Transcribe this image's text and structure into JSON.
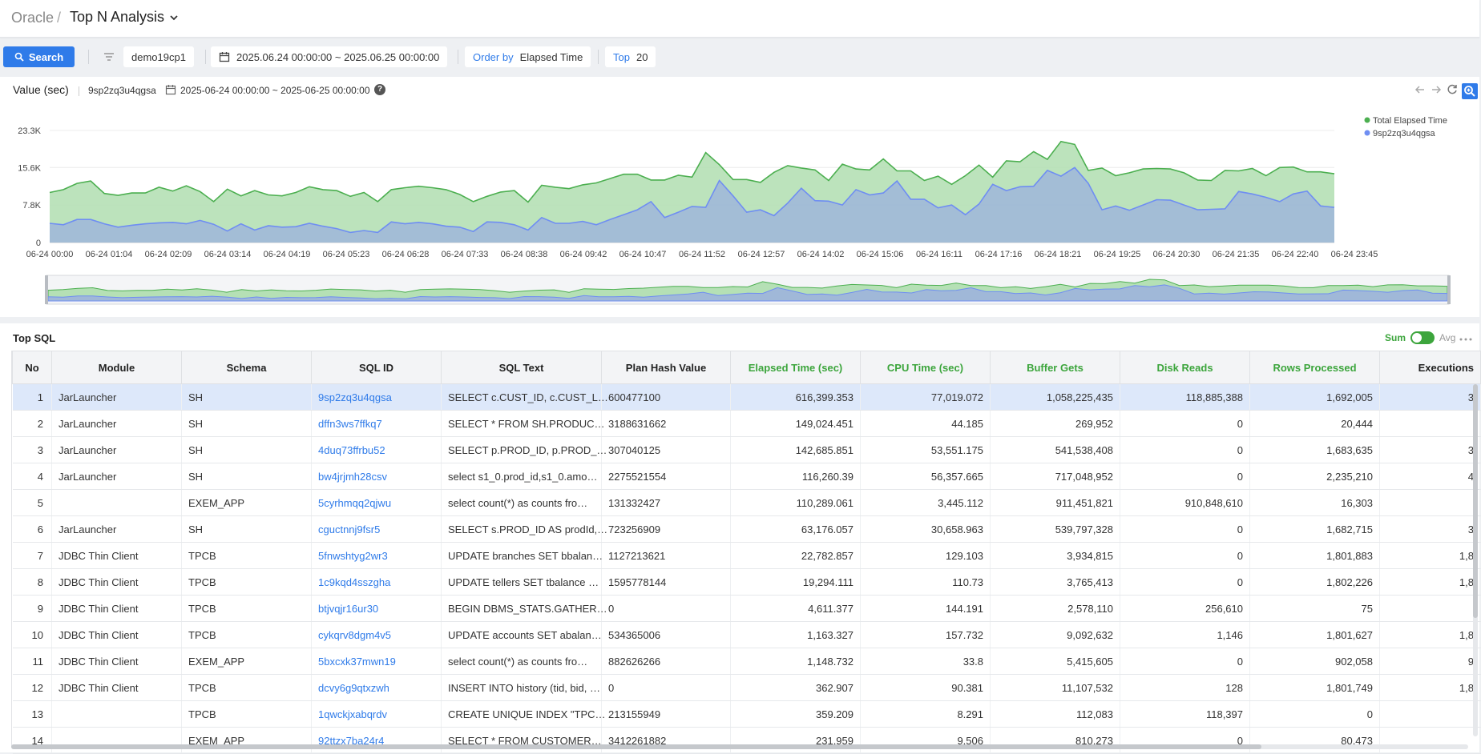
{
  "breadcrumb": {
    "root": "Oracle",
    "separator": "/",
    "page": "Top N Analysis"
  },
  "filters": {
    "search_label": "Search",
    "instance": "demo19cp1",
    "date_range": "2025.06.24 00:00:00 ~ 2025.06.25 00:00:00",
    "order_label": "Order by",
    "order_value": "Elapsed Time",
    "top_label": "Top",
    "top_value": "20"
  },
  "chart_panel": {
    "title": "Value (sec)",
    "sql_id": "9sp2zq3u4qgsa",
    "range": "2025-06-24 00:00:00 ~ 2025-06-25 00:00:00",
    "help": "?"
  },
  "chart_data": {
    "type": "area",
    "ylim": [
      0,
      23300
    ],
    "y_ticks": [
      "0",
      "7.8K",
      "15.6K",
      "23.3K"
    ],
    "x_ticks": [
      "06-24 00:00",
      "06-24 01:04",
      "06-24 02:09",
      "06-24 03:14",
      "06-24 04:19",
      "06-24 05:23",
      "06-24 06:28",
      "06-24 07:33",
      "06-24 08:38",
      "06-24 09:42",
      "06-24 10:47",
      "06-24 11:52",
      "06-24 12:57",
      "06-24 14:02",
      "06-24 15:06",
      "06-24 16:11",
      "06-24 17:16",
      "06-24 18:21",
      "06-24 19:25",
      "06-24 20:30",
      "06-24 21:35",
      "06-24 22:40",
      "06-24 23:45"
    ],
    "legend_position": "top-right",
    "series": [
      {
        "name": "Total Elapsed Time",
        "color": "#4caf50",
        "fill": "#b5e0b5",
        "values": [
          10400,
          11000,
          12300,
          12800,
          10200,
          9800,
          10300,
          10300,
          11500,
          10700,
          11800,
          10600,
          8500,
          11100,
          9700,
          10800,
          9900,
          9700,
          10400,
          11600,
          11000,
          10800,
          9600,
          10400,
          8500,
          11000,
          11400,
          11700,
          11400,
          11000,
          10000,
          8500,
          9600,
          10500,
          10800,
          8400,
          11900,
          11500,
          11200,
          12000,
          12400,
          13300,
          14200,
          14200,
          13000,
          13000,
          14000,
          13600,
          18700,
          16200,
          13100,
          13100,
          12500,
          14600,
          16000,
          15500,
          15100,
          12900,
          16300,
          15300,
          15100,
          17400,
          14900,
          14900,
          12900,
          13800,
          12100,
          13900,
          16100,
          13600,
          17000,
          16800,
          18900,
          17300,
          21000,
          20400,
          15000,
          15500,
          13900,
          14500,
          15300,
          15400,
          15300,
          14500,
          13000,
          12900,
          15000,
          14900,
          15400,
          13900,
          15600,
          15700,
          14700,
          14700,
          14300
        ]
      },
      {
        "name": "9sp2zq3u4qgsa",
        "color": "#6f8ef2",
        "fill": "#a0b8d8",
        "values": [
          4000,
          3700,
          4800,
          4800,
          3900,
          3200,
          3600,
          3900,
          4100,
          4200,
          3900,
          4600,
          3800,
          2400,
          3900,
          2600,
          3500,
          3200,
          3300,
          4000,
          3400,
          2900,
          2100,
          2500,
          2100,
          4300,
          3900,
          4200,
          3900,
          3400,
          3200,
          2300,
          4300,
          4200,
          3700,
          2600,
          5200,
          4000,
          4000,
          4400,
          3700,
          4800,
          5800,
          6800,
          8500,
          5200,
          6300,
          7500,
          7300,
          12900,
          9700,
          6300,
          6800,
          5600,
          8200,
          11300,
          8700,
          8600,
          7800,
          11000,
          9900,
          10300,
          12800,
          9000,
          9000,
          7200,
          7800,
          5800,
          8000,
          12100,
          10800,
          11600,
          11700,
          15000,
          13800,
          15600,
          12300,
          6800,
          7600,
          6700,
          7800,
          8900,
          8800,
          7800,
          6800,
          6900,
          7000,
          10600,
          10100,
          9400,
          8500,
          10100,
          10700,
          7600,
          7300
        ]
      }
    ]
  },
  "table": {
    "title": "Top SQL",
    "toggle_sum": "Sum",
    "toggle_avg": "Avg",
    "columns": [
      "No",
      "Module",
      "Schema",
      "SQL ID",
      "SQL Text",
      "Plan Hash Value",
      "Elapsed Time (sec)",
      "CPU Time (sec)",
      "Buffer Gets",
      "Disk Reads",
      "Rows Processed",
      "Executions"
    ],
    "rows": [
      {
        "no": "1",
        "module": "JarLauncher",
        "schema": "SH",
        "sql_id": "9sp2zq3u4qgsa",
        "sql_text": "SELECT c.CUST_ID, c.CUST_L…",
        "plan": "600477100",
        "elapsed": "616,399.353",
        "cpu": "77,019.072",
        "buffer": "1,058,225,435",
        "disk": "118,885,388",
        "rows": "1,692,005",
        "exec": "3"
      },
      {
        "no": "2",
        "module": "JarLauncher",
        "schema": "SH",
        "sql_id": "dffn3ws7ffkq7",
        "sql_text": "SELECT * FROM SH.PRODUC…",
        "plan": "3188631662",
        "elapsed": "149,024.451",
        "cpu": "44.185",
        "buffer": "269,952",
        "disk": "0",
        "rows": "20,444",
        "exec": ""
      },
      {
        "no": "3",
        "module": "JarLauncher",
        "schema": "SH",
        "sql_id": "4duq73ffrbu52",
        "sql_text": "SELECT p.PROD_ID, p.PROD_…",
        "plan": "307040125",
        "elapsed": "142,685.851",
        "cpu": "53,551.175",
        "buffer": "541,538,408",
        "disk": "0",
        "rows": "1,683,635",
        "exec": "3"
      },
      {
        "no": "4",
        "module": "JarLauncher",
        "schema": "SH",
        "sql_id": "bw4jrjmh28csv",
        "sql_text": "select s1_0.prod_id,s1_0.amo…",
        "plan": "2275521554",
        "elapsed": "116,260.39",
        "cpu": "56,357.665",
        "buffer": "717,048,952",
        "disk": "0",
        "rows": "2,235,210",
        "exec": "4"
      },
      {
        "no": "5",
        "module": "",
        "schema": "EXEM_APP",
        "sql_id": "5cyrhmqq2qjwu",
        "sql_text": "select count(*) as counts fro…",
        "plan": "131332427",
        "elapsed": "110,289.061",
        "cpu": "3,445.112",
        "buffer": "911,451,821",
        "disk": "910,848,610",
        "rows": "16,303",
        "exec": ""
      },
      {
        "no": "6",
        "module": "JarLauncher",
        "schema": "SH",
        "sql_id": "cguctnnj9fsr5",
        "sql_text": "SELECT s.PROD_ID AS prodId,…",
        "plan": "723256909",
        "elapsed": "63,176.057",
        "cpu": "30,658.963",
        "buffer": "539,797,328",
        "disk": "0",
        "rows": "1,682,715",
        "exec": "3"
      },
      {
        "no": "7",
        "module": "JDBC Thin Client",
        "schema": "TPCB",
        "sql_id": "5fnwshtyg2wr3",
        "sql_text": "UPDATE branches SET bbalan…",
        "plan": "1127213621",
        "elapsed": "22,782.857",
        "cpu": "129.103",
        "buffer": "3,934,815",
        "disk": "0",
        "rows": "1,801,883",
        "exec": "1,8"
      },
      {
        "no": "8",
        "module": "JDBC Thin Client",
        "schema": "TPCB",
        "sql_id": "1c9kqd4sszgha",
        "sql_text": "UPDATE tellers SET tbalance …",
        "plan": "1595778144",
        "elapsed": "19,294.111",
        "cpu": "110.73",
        "buffer": "3,765,413",
        "disk": "0",
        "rows": "1,802,226",
        "exec": "1,8"
      },
      {
        "no": "9",
        "module": "JDBC Thin Client",
        "schema": "TPCB",
        "sql_id": "btjvqjr16ur30",
        "sql_text": "BEGIN DBMS_STATS.GATHER…",
        "plan": "0",
        "elapsed": "4,611.377",
        "cpu": "144.191",
        "buffer": "2,578,110",
        "disk": "256,610",
        "rows": "75",
        "exec": ""
      },
      {
        "no": "10",
        "module": "JDBC Thin Client",
        "schema": "TPCB",
        "sql_id": "cykqrv8dgm4v5",
        "sql_text": "UPDATE accounts SET abalan…",
        "plan": "534365006",
        "elapsed": "1,163.327",
        "cpu": "157.732",
        "buffer": "9,092,632",
        "disk": "1,146",
        "rows": "1,801,627",
        "exec": "1,8"
      },
      {
        "no": "11",
        "module": "JDBC Thin Client",
        "schema": "EXEM_APP",
        "sql_id": "5bxcxk37mwn19",
        "sql_text": "select count(*) as counts fro…",
        "plan": "882626266",
        "elapsed": "1,148.732",
        "cpu": "33.8",
        "buffer": "5,415,605",
        "disk": "0",
        "rows": "902,058",
        "exec": "9"
      },
      {
        "no": "12",
        "module": "JDBC Thin Client",
        "schema": "TPCB",
        "sql_id": "dcvy6g9qtxzwh",
        "sql_text": "INSERT INTO history (tid, bid, …",
        "plan": "0",
        "elapsed": "362.907",
        "cpu": "90.381",
        "buffer": "11,107,532",
        "disk": "128",
        "rows": "1,801,749",
        "exec": "1,8"
      },
      {
        "no": "13",
        "module": "",
        "schema": "TPCB",
        "sql_id": "1qwckjxabqrdv",
        "sql_text": "CREATE UNIQUE INDEX \"TPC…",
        "plan": "213155949",
        "elapsed": "359.209",
        "cpu": "8.291",
        "buffer": "112,083",
        "disk": "118,397",
        "rows": "0",
        "exec": ""
      },
      {
        "no": "14",
        "module": "",
        "schema": "EXEM_APP",
        "sql_id": "92ttzx7ba24r4",
        "sql_text": "SELECT * FROM CUSTOMER…",
        "plan": "3412261882",
        "elapsed": "231.959",
        "cpu": "9.506",
        "buffer": "810,273",
        "disk": "0",
        "rows": "80,473",
        "exec": ""
      }
    ]
  },
  "icons": [
    "search-icon",
    "filter-icon",
    "calendar-icon",
    "help-icon",
    "chevron-down-icon",
    "arrow-left-icon",
    "arrow-right-icon",
    "refresh-icon",
    "zoom-icon",
    "more-icon"
  ],
  "colors": {
    "accent": "#2f7be9",
    "green": "#3ca53c"
  }
}
